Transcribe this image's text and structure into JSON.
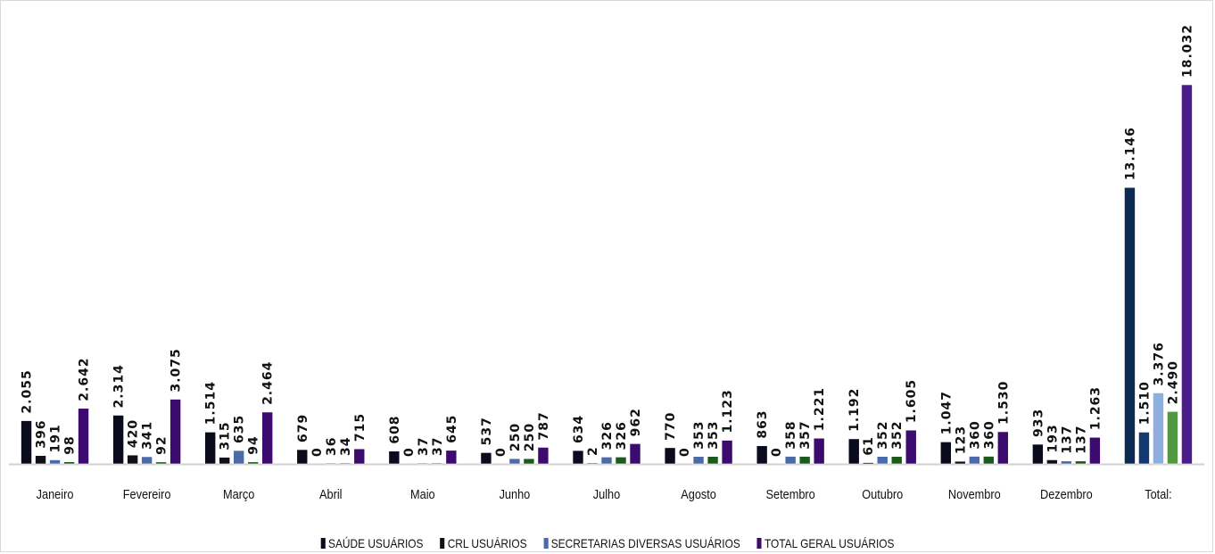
{
  "chart_data": {
    "type": "bar",
    "title": "",
    "xlabel": "",
    "ylabel": "",
    "ylim": [
      0,
      18500
    ],
    "grid": false,
    "legend_position": "bottom",
    "categories": [
      "Janeiro",
      "Fevereiro",
      "Março",
      "Abril",
      "Maio",
      "Junho",
      "Julho",
      "Agosto",
      "Setembro",
      "Outubro",
      "Novembro",
      "Dezembro",
      "Total:"
    ],
    "series": [
      {
        "name": "SAÚDE USUÁRIOS",
        "color": "#0b0b1e",
        "values": [
          2055,
          2314,
          1514,
          679,
          608,
          537,
          634,
          770,
          863,
          1192,
          1047,
          933,
          13146
        ]
      },
      {
        "name": "CRL USUÁRIOS",
        "color": "#101018",
        "values": [
          396,
          420,
          315,
          0,
          0,
          0,
          2,
          0,
          0,
          61,
          123,
          193,
          1510
        ]
      },
      {
        "name": "SECRETARIAS DIVERSAS USUÁRIOS",
        "color": "#4a6aa8",
        "values": [
          191,
          341,
          635,
          36,
          37,
          250,
          326,
          353,
          358,
          352,
          360,
          137,
          3376
        ]
      },
      {
        "name": "",
        "color": "#1c5a1c",
        "values": [
          98,
          92,
          94,
          34,
          37,
          250,
          326,
          353,
          357,
          352,
          360,
          137,
          2490
        ]
      },
      {
        "name": "TOTAL GERAL USUÁRIOS",
        "color": "#3c0b6e",
        "values": [
          2642,
          3075,
          2464,
          715,
          645,
          787,
          962,
          1123,
          1221,
          1605,
          1530,
          1263,
          18032
        ]
      }
    ],
    "data_labels": [
      [
        "2.055",
        "396",
        "191",
        "98",
        "2.642"
      ],
      [
        "2.314",
        "420",
        "341",
        "92",
        "3.075"
      ],
      [
        "1.514",
        "315",
        "635",
        "94",
        "2.464"
      ],
      [
        "679",
        "0",
        "36",
        "34",
        "715"
      ],
      [
        "608",
        "0",
        "37",
        "37",
        "645"
      ],
      [
        "537",
        "0",
        "250",
        "250",
        "787"
      ],
      [
        "634",
        "2",
        "326",
        "326",
        "962"
      ],
      [
        "770",
        "0",
        "353",
        "353",
        "1.123"
      ],
      [
        "863",
        "0",
        "358",
        "357",
        "1.221"
      ],
      [
        "1.192",
        "61",
        "352",
        "352",
        "1.605"
      ],
      [
        "1.047",
        "123",
        "360",
        "360",
        "1.530"
      ],
      [
        "933",
        "193",
        "137",
        "137",
        "1.263"
      ],
      [
        "13.146",
        "1.510",
        "3.376",
        "2.490",
        "18.032"
      ]
    ],
    "total_colors": [
      "#0d2a52",
      "#123a70",
      "#8eaee0",
      "#4f9a3c",
      "#4b1d8c"
    ]
  }
}
